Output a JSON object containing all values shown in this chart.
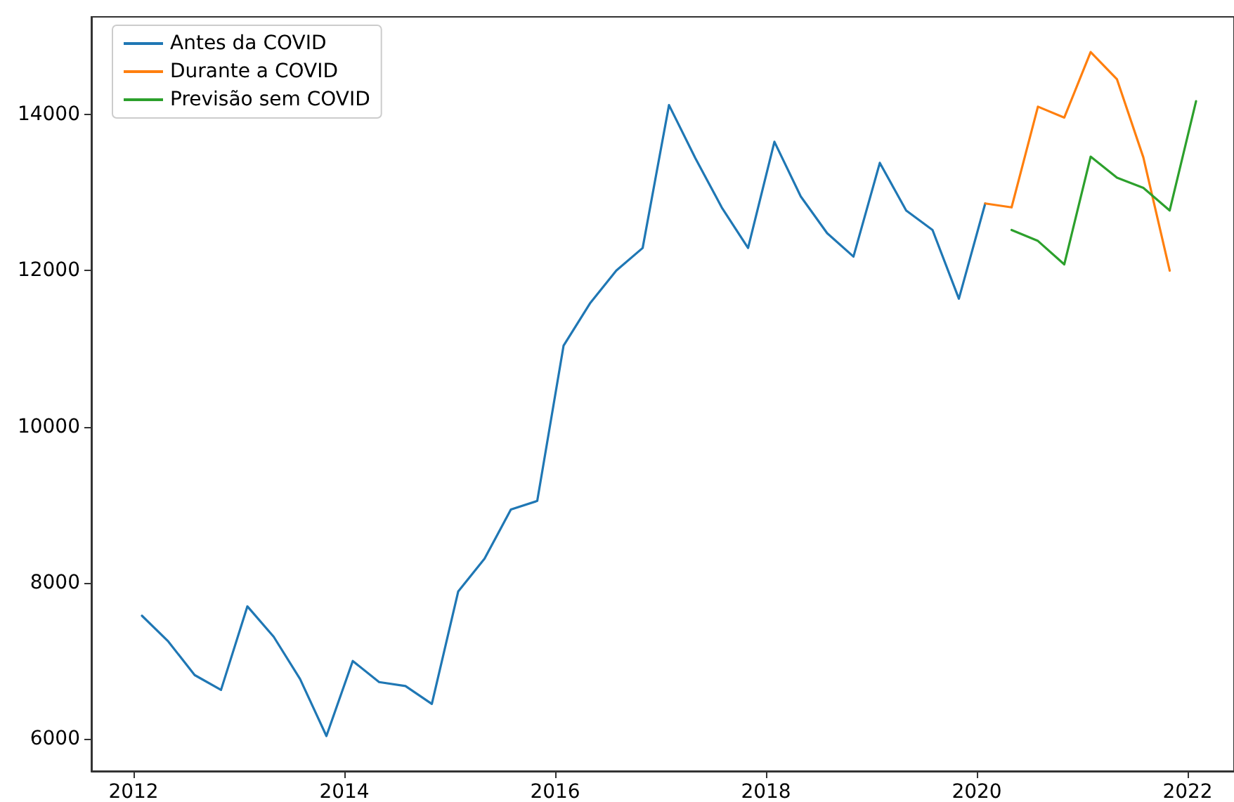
{
  "chart_data": {
    "type": "line",
    "xlim": [
      2011.6,
      2022.44
    ],
    "xticks": [
      2012,
      2014,
      2016,
      2018,
      2020,
      2022
    ],
    "ylim": [
      5590,
      15250
    ],
    "yticks": [
      6000,
      8000,
      10000,
      12000,
      14000
    ],
    "grid": false,
    "legend": "top left",
    "marker": "none",
    "line_style": "solid",
    "series": [
      {
        "name": "Antes da COVID",
        "color": "#1f77b4",
        "x": [
          2012.08,
          2012.33,
          2012.58,
          2012.83,
          2013.08,
          2013.33,
          2013.58,
          2013.83,
          2014.08,
          2014.33,
          2014.58,
          2014.83,
          2015.08,
          2015.33,
          2015.58,
          2015.83,
          2016.08,
          2016.33,
          2016.58,
          2016.83,
          2017.08,
          2017.33,
          2017.58,
          2017.83,
          2018.08,
          2018.33,
          2018.58,
          2018.83,
          2019.08,
          2019.33,
          2019.58,
          2019.83,
          2020.08
        ],
        "values": [
          7580,
          7250,
          6820,
          6630,
          7700,
          7310,
          6770,
          6040,
          7000,
          6730,
          6680,
          6450,
          7890,
          8310,
          8940,
          9050,
          11040,
          11580,
          12000,
          12290,
          14120,
          13440,
          12810,
          12290,
          13650,
          12950,
          12480,
          12180,
          13380,
          12770,
          12520,
          11640,
          12860
        ]
      },
      {
        "name": "Durante a COVID",
        "color": "#ff7f0e",
        "x": [
          2020.08,
          2020.33,
          2020.58,
          2020.83,
          2021.08,
          2021.33,
          2021.58,
          2021.83
        ],
        "values": [
          12860,
          12810,
          14100,
          13960,
          14800,
          14450,
          13450,
          12000
        ]
      },
      {
        "name": "Previsão sem COVID",
        "color": "#2ca02c",
        "x": [
          2020.33,
          2020.58,
          2020.83,
          2021.08,
          2021.33,
          2021.58,
          2021.83,
          2022.08
        ],
        "values": [
          12520,
          12380,
          12080,
          13460,
          13190,
          13060,
          12770,
          14170
        ]
      }
    ]
  }
}
